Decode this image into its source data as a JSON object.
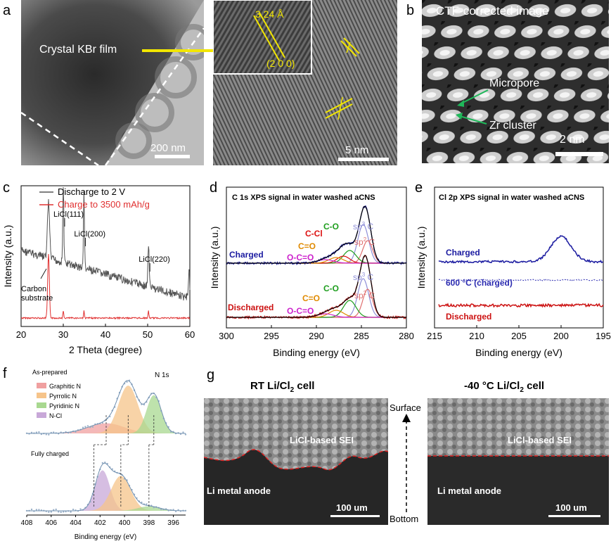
{
  "panel_a": {
    "letter": "a",
    "film_label": "Crystal KBr film",
    "scale_left": "200 nm",
    "spacing": "3.24 Å",
    "plane": "(2 0 0)",
    "scale_right": "5 nm"
  },
  "panel_b": {
    "letter": "b",
    "title": "CTF-corrected image",
    "micropore": "Micropore",
    "zr_cluster": "Zr cluster",
    "scale": "2 nm"
  },
  "chart_c": {
    "letter": "c",
    "type": "line",
    "xlabel": "2 Theta (degree)",
    "ylabel": "Intensity (a.u.)",
    "xlim": [
      20,
      60
    ],
    "xticks": [
      "20",
      "30",
      "40",
      "50",
      "60"
    ],
    "series": [
      {
        "name": "Discharge to 2 V",
        "color": "#555555"
      },
      {
        "name": "Charge to 3500 mAh/g",
        "color": "#e03030"
      }
    ],
    "peaks": [
      {
        "label": "LiCl(111)",
        "x": 30.0
      },
      {
        "label": "LiCl(200)",
        "x": 34.9
      },
      {
        "label": "LiCl(220)",
        "x": 50.2
      }
    ],
    "annotation_line1": "Carbon",
    "annotation_line2": "substrate"
  },
  "chart_d": {
    "letter": "d",
    "type": "line",
    "title": "C 1s XPS signal in water washed aCNS",
    "xlabel": "Binding energy (eV)",
    "ylabel": "Intensity (a.u.)",
    "xlim": [
      300,
      280
    ],
    "xticks": [
      "300",
      "295",
      "290",
      "285",
      "280"
    ],
    "series": [
      {
        "name": "Charged",
        "color": "#1a1aa0"
      },
      {
        "name": "Discharged",
        "color": "#cc1111"
      }
    ],
    "components": [
      {
        "name": "sp3 C",
        "center": 284.8,
        "color": "#8f8fd8"
      },
      {
        "name": "sp2 C",
        "center": 284.3,
        "color": "#e07070"
      },
      {
        "name": "C-O",
        "center": 286.3,
        "color": "#1e9e1e"
      },
      {
        "name": "C-Cl",
        "center": 287.0,
        "color": "#dd1111"
      },
      {
        "name": "C=O",
        "center": 287.8,
        "color": "#e08a00"
      },
      {
        "name": "O-C=O",
        "center": 289.0,
        "color": "#cc22cc"
      }
    ],
    "labels": {
      "charged": "Charged",
      "discharged": "Discharged",
      "ccl": "C-Cl",
      "co": "C-O",
      "coo": "C=O",
      "ocoo": "O-C=O",
      "sp3_main": "sp",
      "sp3_sup": "3",
      "sp2_main": "sp",
      "sp2_sup": "2",
      "c_suffix": " C"
    }
  },
  "chart_e": {
    "letter": "e",
    "type": "line",
    "title": "Cl 2p XPS signal in water washed aCNS",
    "xlabel": "Binding energy (eV)",
    "ylabel": "Intensity (a.u.)",
    "xlim": [
      215,
      195
    ],
    "xticks": [
      "215",
      "210",
      "205",
      "200",
      "195"
    ],
    "series": [
      {
        "name": "Charged",
        "color": "#1a1aa0",
        "peak": 200.0
      },
      {
        "name": "600 °C (charged)",
        "color": "#2a2ab0"
      },
      {
        "name": "Discharged",
        "color": "#cc1111"
      }
    ],
    "labels": {
      "charged": "Charged",
      "heated": "600 °C (charged)",
      "discharged": "Discharged"
    }
  },
  "chart_f": {
    "letter": "f",
    "type": "line",
    "title_top": "As-prepared",
    "title_element": "N 1s",
    "title_bottom": "Fully charged",
    "xlabel": "Binding energy (eV)",
    "xlim": [
      408,
      395
    ],
    "xticks": [
      "408",
      "406",
      "404",
      "402",
      "400",
      "398",
      "396"
    ],
    "legend": [
      {
        "name": "Graphitic N",
        "color": "#f0a0a0"
      },
      {
        "name": "Pyrrolic N",
        "color": "#f6c48a"
      },
      {
        "name": "Pyridinic N",
        "color": "#a8d890"
      },
      {
        "name": "N-Cl",
        "color": "#c8a8d8"
      }
    ],
    "as_prepared": [
      {
        "name": "Graphitic N",
        "center": 401.5,
        "height": 0.18,
        "width": 1.5
      },
      {
        "name": "Pyrrolic N",
        "center": 399.7,
        "height": 0.85,
        "width": 0.8
      },
      {
        "name": "Pyridinic N",
        "center": 397.6,
        "height": 0.68,
        "width": 0.6
      }
    ],
    "fully_charged": [
      {
        "name": "N-Cl",
        "center": 401.8,
        "height": 0.72,
        "width": 0.6
      },
      {
        "name": "Pyrrolic N",
        "center": 400.3,
        "height": 0.62,
        "width": 0.8
      },
      {
        "name": "Pyridinic N",
        "center": 398.0,
        "height": 0.08,
        "width": 0.9
      }
    ]
  },
  "panel_g": {
    "letter": "g",
    "left_title_main": "RT Li/Cl",
    "left_title_sub": "2",
    "left_title_end": " cell",
    "right_title_main": "-40 °C Li/Cl",
    "right_title_sub": "2",
    "right_title_end": " cell",
    "sei_label": "LiCl-based SEI",
    "anode_label": "Li metal anode",
    "scale": "100 um",
    "surface": "Surface",
    "bottom": "Bottom"
  }
}
